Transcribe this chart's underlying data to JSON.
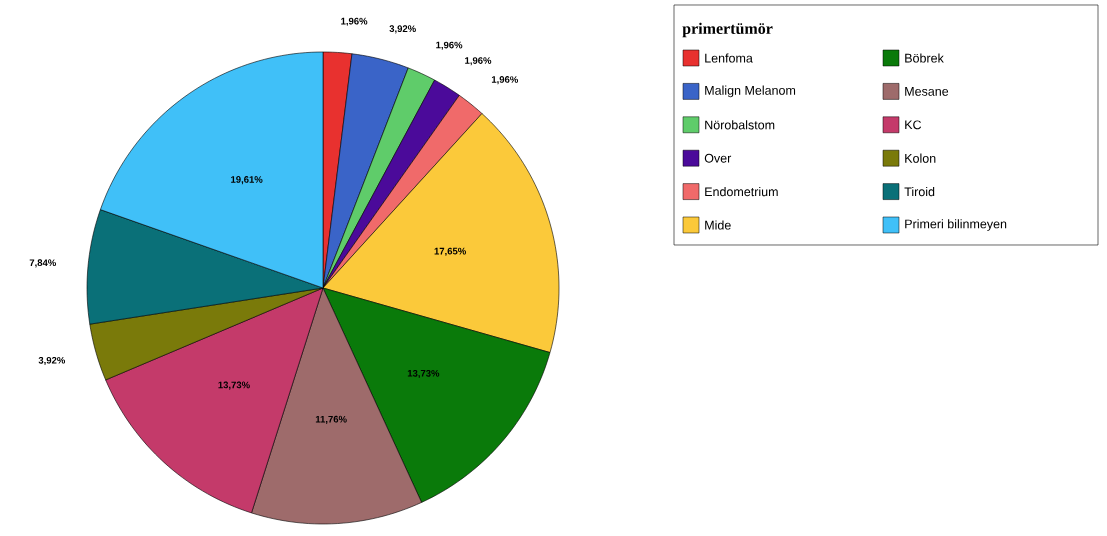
{
  "chart_data": {
    "type": "pie",
    "legend_title": "primertümör",
    "legend": "top right",
    "categories": [
      "Lenfoma",
      "Malign Melanom",
      "Nörobalstom",
      "Over",
      "Endometrium",
      "Mide",
      "Böbrek",
      "Mesane",
      "KC",
      "Kolon",
      "Tiroid",
      "Primeri bilinmeyen"
    ],
    "values": [
      1.96,
      3.92,
      1.96,
      1.96,
      1.96,
      17.65,
      13.73,
      11.76,
      13.73,
      3.92,
      7.84,
      19.61
    ],
    "value_labels": [
      "1,96%",
      "3,92%",
      "1,96%",
      "1,96%",
      "1,96%",
      "17,65%",
      "13,73%",
      "11,76%",
      "13,73%",
      "3,92%",
      "7,84%",
      "19,61%"
    ],
    "colors": [
      "#e8312f",
      "#3a64c8",
      "#5fcc6a",
      "#4b0a9a",
      "#f06a6a",
      "#fbc93a",
      "#0a7a0a",
      "#9e6b6b",
      "#c43a6a",
      "#7a7a0a",
      "#0a7078",
      "#40c0f8"
    ]
  }
}
